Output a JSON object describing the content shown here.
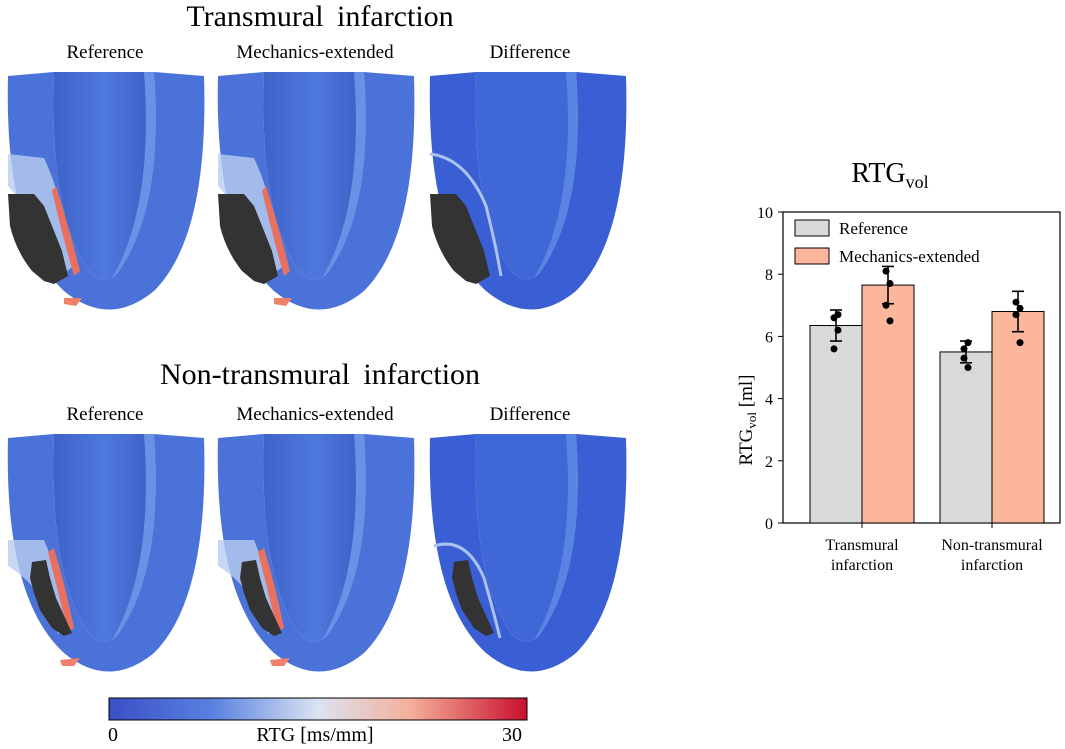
{
  "sections": [
    {
      "title": "Transmural  infarction"
    },
    {
      "title": "Non-transmural  infarction"
    }
  ],
  "panels": [
    "Reference",
    "Mechanics-extended",
    "Difference"
  ],
  "colorbar": {
    "min_label": "0",
    "max_label": "30",
    "label": "RTG [ms/mm]",
    "min": 0,
    "max": 30
  },
  "chart_data": {
    "type": "bar",
    "title_main": "RTG",
    "title_sub": "vol",
    "ylabel_main": "RTG",
    "ylabel_sub": "vol",
    "ylabel_unit": " [ml]",
    "ylim": [
      0,
      10
    ],
    "yticks": [
      0,
      2,
      4,
      6,
      8,
      10
    ],
    "categories": [
      {
        "line1": "Transmural",
        "line2": "infarction"
      },
      {
        "line1": "Non-transmural",
        "line2": "infarction"
      }
    ],
    "series": [
      {
        "name": "Reference",
        "color": "#d9d9d9",
        "values": [
          6.35,
          5.5
        ],
        "err": [
          0.5,
          0.35
        ],
        "points": [
          [
            6.6,
            6.2,
            5.6,
            6.7
          ],
          [
            5.6,
            5.8,
            5.3,
            5.0
          ]
        ]
      },
      {
        "name": "Mechanics-extended",
        "color": "#fbb69c",
        "values": [
          7.65,
          6.8
        ],
        "err": [
          0.6,
          0.65
        ],
        "points": [
          [
            8.1,
            7.7,
            7.0,
            6.5
          ],
          [
            7.1,
            6.9,
            6.7,
            5.8
          ]
        ]
      }
    ]
  }
}
